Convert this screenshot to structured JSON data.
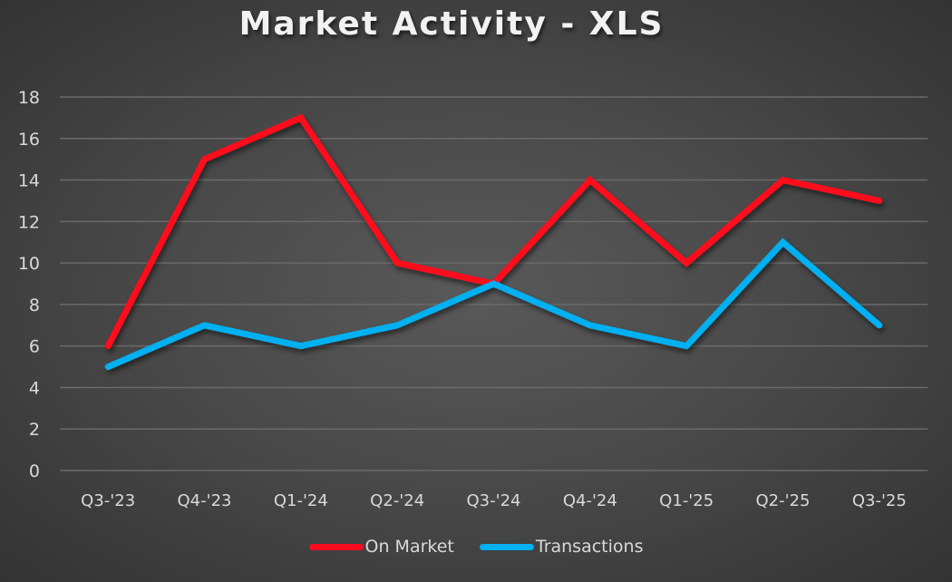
{
  "chart_data": {
    "type": "line",
    "title": "Market Activity - XLS",
    "xlabel": "",
    "ylabel": "",
    "categories": [
      "Q3-'23",
      "Q4-'23",
      "Q1-'24",
      "Q2-'24",
      "Q3-'24",
      "Q4-'24",
      "Q1-'25",
      "Q2-'25",
      "Q3-'25"
    ],
    "series": [
      {
        "name": "On Market",
        "color": "#ff0a1e",
        "values": [
          6,
          15,
          17,
          10,
          9,
          14,
          10,
          14,
          13
        ]
      },
      {
        "name": "Transactions",
        "color": "#00b0f0",
        "values": [
          5,
          7,
          6,
          7,
          9,
          7,
          6,
          11,
          7
        ]
      }
    ],
    "ylim": [
      0,
      18
    ],
    "yticks": [
      0,
      2,
      4,
      6,
      8,
      10,
      12,
      14,
      16,
      18
    ],
    "grid": true,
    "legend_position": "bottom"
  },
  "legend": {
    "items": [
      {
        "label": "On Market",
        "color": "#ff0a1e"
      },
      {
        "label": "Transactions",
        "color": "#00b0f0"
      }
    ]
  }
}
